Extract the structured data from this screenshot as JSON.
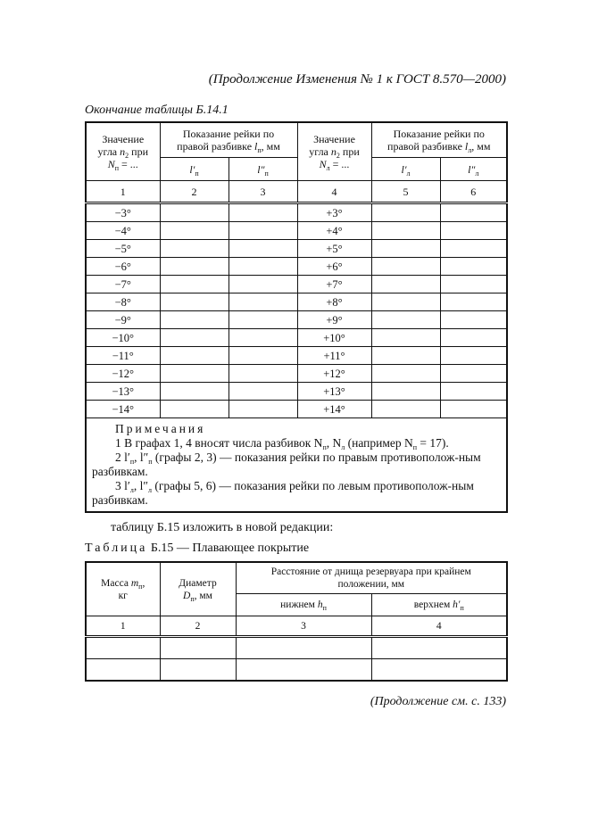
{
  "header": {
    "continuation": "(Продолжение Изменения № 1 к ГОСТ 8.570—2000)"
  },
  "table1": {
    "caption": "Окончание таблицы Б.14.1",
    "col1": {
      "l1": "Значение",
      "l2a": "угла ",
      "var": "n",
      "sub": "2",
      "l2b": " при",
      "var2": "N",
      "sub2": "п",
      "tail": " = ..."
    },
    "col23": {
      "l1": "Показание рейки по",
      "l2": "правой разбивке ",
      "var": "l",
      "sub": "п",
      "tail": ", мм"
    },
    "col4": {
      "l1": "Значение",
      "l2a": "угла ",
      "var": "n",
      "sub": "2",
      "l2b": " при",
      "var2": "N",
      "sub2": "л",
      "tail": " = ..."
    },
    "col56": {
      "l1": "Показание рейки по",
      "l2": "правой разбивке ",
      "var": "l",
      "sub": "л",
      "tail": ", мм"
    },
    "sub_headers": [
      {
        "var": "l′",
        "sub": "п"
      },
      {
        "var": "l″",
        "sub": "п"
      },
      {
        "var": "l′",
        "sub": "л"
      },
      {
        "var": "l″",
        "sub": "л"
      }
    ],
    "numbers": [
      "1",
      "2",
      "3",
      "4",
      "5",
      "6"
    ],
    "rows": [
      [
        "−3°",
        "+3°"
      ],
      [
        "−4°",
        "+4°"
      ],
      [
        "−5°",
        "+5°"
      ],
      [
        "−6°",
        "+6°"
      ],
      [
        "−7°",
        "+7°"
      ],
      [
        "−8°",
        "+8°"
      ],
      [
        "−9°",
        "+9°"
      ],
      [
        "−10°",
        "+10°"
      ],
      [
        "−11°",
        "+11°"
      ],
      [
        "−12°",
        "+12°"
      ],
      [
        "−13°",
        "+13°"
      ],
      [
        "−14°",
        "+14°"
      ]
    ],
    "notes": {
      "title": "Примечания",
      "n1": "1 В графах 1, 4 вносят числа разбивок N",
      "n1b": "п",
      "n1c": ", N",
      "n1d": "л",
      "n1e": " (например N",
      "n1f": "п",
      "n1g": " = 17).",
      "n2": "2 l′",
      "n2b": "п",
      "n2c": ", l″",
      "n2d": "п",
      "n2e": " (графы 2, 3) — показания рейки по правым противополож-ным разбивкам.",
      "n3": "3 l′",
      "n3b": "л",
      "n3c": ", l″",
      "n3d": "л",
      "n3e": " (графы 5, 6) — показания рейки по левым противополож-ным разбивкам."
    }
  },
  "instruction": "таблицу Б.15 изложить в новой редакции:",
  "table2": {
    "caption_prefix": "Таблица",
    "caption_rest": " Б.15 — Плавающее покрытие",
    "col1": {
      "a": "Масса ",
      "var": "m",
      "sub": "п",
      "b": ",",
      "c": "кг"
    },
    "col2": {
      "a": "Диаметр",
      "var": "D",
      "sub": "п",
      "b": ",  мм"
    },
    "col34": "Расстояние от днища резервуара при крайнем положении, мм",
    "col3": {
      "a": "нижнем ",
      "var": "h",
      "sub": "п"
    },
    "col4": {
      "a": "верхнем ",
      "var": "h′",
      "sub": "п"
    },
    "numbers": [
      "1",
      "2",
      "3",
      "4"
    ]
  },
  "footer": "(Продолжение см. с. 133)"
}
